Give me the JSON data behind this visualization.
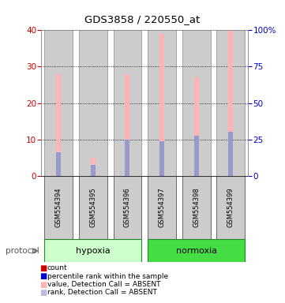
{
  "title": "GDS3858 / 220550_at",
  "samples": [
    "GSM554394",
    "GSM554395",
    "GSM554396",
    "GSM554397",
    "GSM554398",
    "GSM554399"
  ],
  "groups": [
    "hypoxia",
    "hypoxia",
    "hypoxia",
    "normoxia",
    "normoxia",
    "normoxia"
  ],
  "pink_bar_values": [
    28,
    5,
    28,
    39,
    27,
    40
  ],
  "blue_bar_values": [
    6.5,
    3,
    10,
    9.5,
    11,
    12
  ],
  "left_ylim": [
    0,
    40
  ],
  "right_ylim": [
    0,
    100
  ],
  "left_yticks": [
    0,
    10,
    20,
    30,
    40
  ],
  "right_yticks": [
    0,
    25,
    50,
    75,
    100
  ],
  "right_yticklabels": [
    "0",
    "25",
    "50",
    "75",
    "100%"
  ],
  "left_ycolor": "#cc0000",
  "right_ycolor": "#0000cc",
  "pink_color": "#ffb3b3",
  "blue_color": "#9999cc",
  "red_color": "#cc0000",
  "dark_blue_color": "#0000cc",
  "hypoxia_color_light": "#ccffcc",
  "normoxia_color_dark": "#44dd44",
  "bg_color": "#ffffff",
  "bar_bg_color": "#cccccc",
  "bar_bg_edge": "#888888",
  "legend_items": [
    {
      "color": "#cc0000",
      "label": "count"
    },
    {
      "color": "#0000cc",
      "label": "percentile rank within the sample"
    },
    {
      "color": "#ffb3b3",
      "label": "value, Detection Call = ABSENT"
    },
    {
      "color": "#bbbbdd",
      "label": "rank, Detection Call = ABSENT"
    }
  ]
}
